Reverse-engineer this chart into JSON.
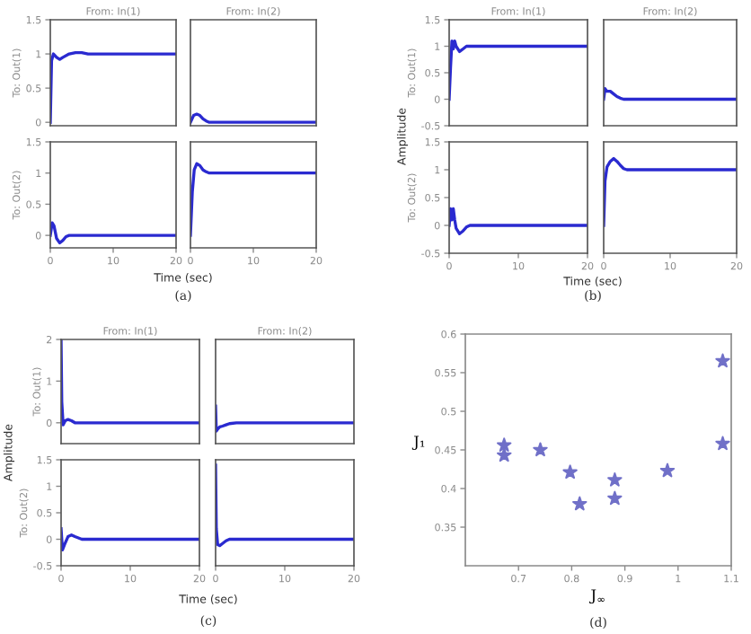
{
  "chart_data": [
    {
      "type": "line",
      "title": "From: In(1)",
      "ylabel": "To: Out(1)",
      "tick_labels": "y",
      "xlim": [
        0,
        20
      ],
      "ylim": [
        -0.05,
        1.5
      ],
      "yticks": [
        0,
        0.5,
        1,
        1.5
      ],
      "series": [
        {
          "color": "#2a2ad0",
          "x": [
            0,
            0.2,
            0.5,
            1,
            1.5,
            2,
            3,
            4,
            5,
            6,
            20
          ],
          "values": [
            0,
            0.9,
            1.0,
            0.95,
            0.92,
            0.95,
            1.0,
            1.02,
            1.02,
            1.0,
            1.0
          ]
        }
      ]
    },
    {
      "type": "line",
      "title": "From: In(2)",
      "tick_labels": false,
      "xlim": [
        0,
        20
      ],
      "ylim": [
        -0.05,
        1.5
      ],
      "series": [
        {
          "color": "#2a2ad0",
          "x": [
            0,
            0.5,
            1,
            1.5,
            2,
            2.5,
            3,
            20
          ],
          "values": [
            0,
            0.1,
            0.12,
            0.1,
            0.05,
            0.02,
            0,
            0
          ]
        }
      ]
    },
    {
      "type": "line",
      "ylabel": "To: Out(2)",
      "xlabel": "Time (sec)",
      "annotations": [
        "(a)"
      ],
      "xlim": [
        0,
        20
      ],
      "ylim": [
        -0.2,
        1.5
      ],
      "xticks": [
        0,
        10,
        20
      ],
      "yticks": [
        0,
        0.5,
        1,
        1.5
      ],
      "series": [
        {
          "color": "#2a2ad0",
          "x": [
            0,
            0.3,
            0.6,
            1,
            1.5,
            2,
            2.5,
            3,
            20
          ],
          "values": [
            0,
            0.2,
            0.15,
            -0.05,
            -0.12,
            -0.08,
            -0.02,
            0,
            0
          ]
        }
      ]
    },
    {
      "type": "line",
      "tick_labels": "x",
      "xlim": [
        0,
        20
      ],
      "ylim": [
        -0.2,
        1.5
      ],
      "xticks": [
        0,
        10,
        20
      ],
      "series": [
        {
          "color": "#2a2ad0",
          "x": [
            0,
            0.3,
            0.6,
            1,
            1.5,
            2,
            2.5,
            3,
            4,
            20
          ],
          "values": [
            0,
            0.7,
            1.05,
            1.15,
            1.12,
            1.05,
            1.02,
            1.0,
            1.0,
            1.0
          ]
        }
      ]
    },
    {
      "type": "line",
      "title": "From: In(1)",
      "ylabel": "To: Out(1)",
      "annotations": [
        "Amplitude"
      ],
      "tick_labels": "y",
      "xlim": [
        0,
        20
      ],
      "ylim": [
        -0.5,
        1.5
      ],
      "yticks": [
        -0.5,
        0,
        0.5,
        1,
        1.5
      ],
      "series": [
        {
          "color": "#2a2ad0",
          "x": [
            0,
            0.2,
            0.4,
            0.6,
            0.8,
            1,
            1.5,
            2,
            2.5,
            3,
            20
          ],
          "values": [
            0,
            0.6,
            1.1,
            0.95,
            1.1,
            1.0,
            0.9,
            0.95,
            1.0,
            1.0,
            1.0
          ]
        }
      ]
    },
    {
      "type": "line",
      "title": "From: In(2)",
      "tick_labels": false,
      "xlim": [
        0,
        20
      ],
      "ylim": [
        -0.5,
        1.5
      ],
      "series": [
        {
          "color": "#2a2ad0",
          "x": [
            0,
            0.2,
            0.5,
            1,
            1.5,
            2,
            2.5,
            3,
            20
          ],
          "values": [
            0,
            0.2,
            0.15,
            0.15,
            0.1,
            0.05,
            0.02,
            0,
            0
          ]
        }
      ]
    },
    {
      "type": "line",
      "ylabel": "To: Out(2)",
      "xlabel": "Time (sec)",
      "annotations": [
        "(b)"
      ],
      "xlim": [
        0,
        20
      ],
      "ylim": [
        -0.5,
        1.5
      ],
      "xticks": [
        0,
        10,
        20
      ],
      "yticks": [
        -0.5,
        0,
        0.5,
        1,
        1.5
      ],
      "series": [
        {
          "color": "#2a2ad0",
          "x": [
            0,
            0.2,
            0.4,
            0.6,
            0.8,
            1,
            1.5,
            2,
            2.5,
            3,
            20
          ],
          "values": [
            0,
            0.3,
            0.1,
            0.3,
            0.1,
            -0.05,
            -0.15,
            -0.1,
            -0.03,
            0,
            0
          ]
        }
      ]
    },
    {
      "type": "line",
      "tick_labels": "x",
      "xlim": [
        0,
        20
      ],
      "ylim": [
        -0.5,
        1.5
      ],
      "xticks": [
        0,
        10,
        20
      ],
      "series": [
        {
          "color": "#2a2ad0",
          "x": [
            0,
            0.2,
            0.5,
            1,
            1.5,
            2,
            2.5,
            3,
            3.5,
            20
          ],
          "values": [
            0,
            0.8,
            1.05,
            1.15,
            1.2,
            1.15,
            1.08,
            1.02,
            1.0,
            1.0
          ]
        }
      ]
    },
    {
      "type": "line",
      "title": "From: In(1)",
      "ylabel": "To: Out(1)",
      "annotations": [
        "Amplitude"
      ],
      "tick_labels": "y",
      "xlim": [
        0,
        20
      ],
      "ylim": [
        -0.5,
        2
      ],
      "yticks": [
        0,
        1,
        2
      ],
      "series": [
        {
          "color": "#2a2ad0",
          "x": [
            0,
            0.1,
            0.3,
            0.6,
            1,
            1.5,
            2,
            3,
            20
          ],
          "values": [
            2,
            0.5,
            -0.05,
            0.05,
            0.08,
            0.05,
            0,
            0,
            0
          ]
        }
      ]
    },
    {
      "type": "line",
      "title": "From: In(2)",
      "tick_labels": false,
      "xlim": [
        0,
        20
      ],
      "ylim": [
        -0.5,
        2
      ],
      "series": [
        {
          "color": "#2a2ad0",
          "x": [
            0,
            0.1,
            0.3,
            0.6,
            1,
            1.5,
            2,
            3,
            20
          ],
          "values": [
            0.4,
            -0.2,
            -0.15,
            -0.1,
            -0.08,
            -0.05,
            -0.02,
            0,
            0
          ]
        }
      ]
    },
    {
      "type": "line",
      "ylabel": "To: Out(2)",
      "xlabel": "Time (sec)",
      "annotations": [
        "(c)"
      ],
      "xlim": [
        0,
        20
      ],
      "ylim": [
        -0.5,
        1.5
      ],
      "xticks": [
        0,
        10,
        20
      ],
      "yticks": [
        -0.5,
        0,
        0.5,
        1,
        1.5
      ],
      "series": [
        {
          "color": "#2a2ad0",
          "x": [
            0,
            0.2,
            0.5,
            1,
            1.5,
            2,
            3,
            20
          ],
          "values": [
            0.2,
            -0.2,
            -0.1,
            0.05,
            0.08,
            0.05,
            0,
            0
          ]
        }
      ]
    },
    {
      "type": "line",
      "tick_labels": "x",
      "xlim": [
        0,
        20
      ],
      "ylim": [
        -0.5,
        1.5
      ],
      "xticks": [
        0,
        10,
        20
      ],
      "series": [
        {
          "color": "#2a2ad0",
          "x": [
            0,
            0.1,
            0.3,
            0.6,
            1,
            1.5,
            2,
            3,
            20
          ],
          "values": [
            1.4,
            0.2,
            -0.1,
            -0.12,
            -0.08,
            -0.03,
            0,
            0,
            0
          ]
        }
      ]
    },
    {
      "type": "scatter",
      "xlabel": "J$_{∞}$",
      "ylabel": "J₁",
      "annotations": [
        "(d)"
      ],
      "marker": "star",
      "xlim": [
        0.6,
        1.1
      ],
      "ylim": [
        0.3,
        0.6
      ],
      "xticks": [
        0.7,
        0.8,
        0.9,
        1,
        1.1
      ],
      "yticks": [
        0.35,
        0.4,
        0.45,
        0.5,
        0.55,
        0.6
      ],
      "series": [
        {
          "color": "#7070c8",
          "x": [
            0.673,
            0.673,
            0.741,
            0.797,
            0.815,
            0.881,
            0.881,
            0.98,
            1.084,
            1.084
          ],
          "values": [
            0.456,
            0.443,
            0.45,
            0.421,
            0.38,
            0.411,
            0.387,
            0.423,
            0.565,
            0.458
          ]
        }
      ]
    }
  ]
}
